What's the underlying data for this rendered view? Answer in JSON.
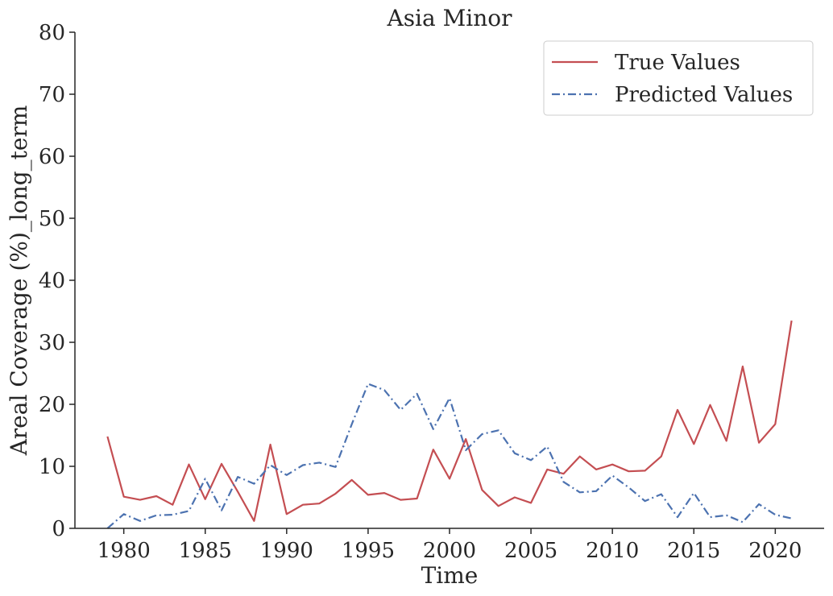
{
  "chart_data": {
    "type": "line",
    "title": "Asia Minor",
    "xlabel": "Time",
    "ylabel": "Areal Coverage (%)_long_term",
    "xlim": [
      1977,
      2023
    ],
    "ylim": [
      0,
      80
    ],
    "x_ticks": [
      1980,
      1985,
      1990,
      1995,
      2000,
      2005,
      2010,
      2015,
      2020
    ],
    "y_ticks": [
      0,
      10,
      20,
      30,
      40,
      50,
      60,
      70,
      80
    ],
    "grid": false,
    "legend_position": "top-right",
    "x": [
      1979,
      1980,
      1981,
      1982,
      1983,
      1984,
      1985,
      1986,
      1987,
      1988,
      1989,
      1990,
      1991,
      1992,
      1993,
      1994,
      1995,
      1996,
      1997,
      1998,
      1999,
      2000,
      2001,
      2002,
      2003,
      2004,
      2005,
      2006,
      2007,
      2008,
      2009,
      2010,
      2011,
      2012,
      2013,
      2014,
      2015,
      2016,
      2017,
      2018,
      2019,
      2020,
      2021
    ],
    "series": [
      {
        "name": "True Values",
        "color": "#c44e52",
        "style": "solid",
        "values": [
          14.8,
          5.1,
          4.6,
          5.2,
          3.8,
          10.3,
          4.7,
          10.4,
          5.9,
          1.2,
          13.5,
          2.3,
          3.8,
          4.0,
          5.6,
          7.8,
          5.4,
          5.7,
          4.6,
          4.8,
          12.7,
          8.0,
          14.4,
          6.2,
          3.6,
          5.0,
          4.1,
          9.5,
          8.8,
          11.6,
          9.5,
          10.3,
          9.2,
          9.3,
          11.6,
          19.1,
          13.6,
          19.9,
          14.1,
          26.1,
          13.8,
          16.8,
          33.5
        ]
      },
      {
        "name": "Predicted Values",
        "color": "#4c72b0",
        "style": "dashdot",
        "values": [
          0.0,
          2.3,
          1.2,
          2.1,
          2.2,
          2.8,
          8.0,
          2.9,
          8.3,
          7.2,
          10.2,
          8.6,
          10.2,
          10.6,
          9.9,
          16.8,
          23.3,
          22.3,
          19.1,
          21.7,
          16.0,
          21.0,
          12.6,
          15.2,
          15.8,
          12.1,
          11.0,
          13.2,
          7.5,
          5.8,
          6.0,
          8.5,
          6.6,
          4.4,
          5.5,
          1.8,
          5.7,
          1.8,
          2.1,
          1.0,
          3.9,
          2.2,
          1.6
        ]
      }
    ]
  }
}
